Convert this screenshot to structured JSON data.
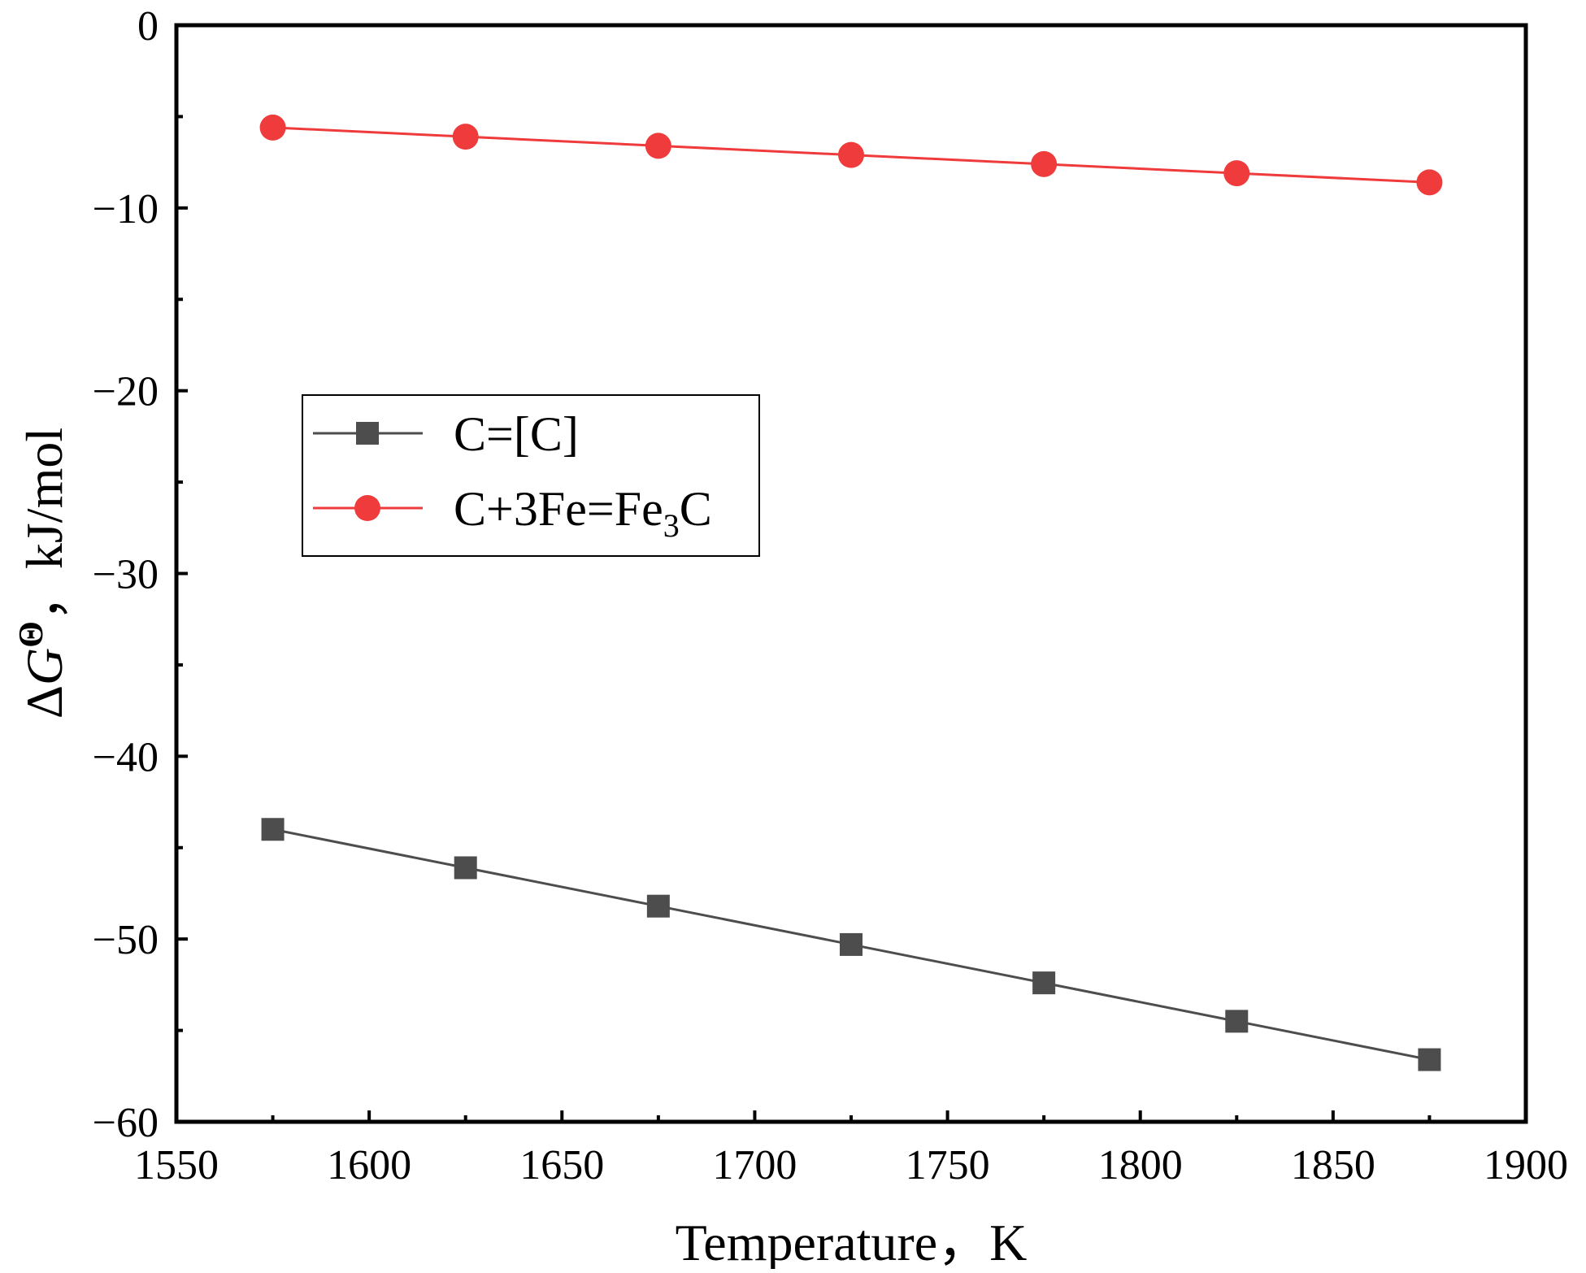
{
  "chart_data": {
    "type": "line",
    "title": "",
    "xlabel": "Temperature，K",
    "ylabel": {
      "delta": "Δ",
      "symbol": "G",
      "superscript": "Θ",
      "rest": "，kJ/mol"
    },
    "xlim": [
      1550,
      1900
    ],
    "ylim": [
      -60,
      0
    ],
    "xticks": [
      1550,
      1600,
      1650,
      1700,
      1750,
      1800,
      1850,
      1900
    ],
    "yticks": [
      0,
      -10,
      -20,
      -30,
      -40,
      -50,
      -60
    ],
    "xtick_labels": [
      "1550",
      "1600",
      "1650",
      "1700",
      "1750",
      "1800",
      "1850",
      "1900"
    ],
    "ytick_labels": [
      "0",
      "−10",
      "−20",
      "−30",
      "−40",
      "−50",
      "−60"
    ],
    "grid": false,
    "legend_position": "center-left",
    "x": [
      1575,
      1625,
      1675,
      1725,
      1775,
      1825,
      1875
    ],
    "series": [
      {
        "name": "C=[C]",
        "legend_parts": [
          {
            "text": "C=[C]",
            "sub": false
          }
        ],
        "marker": "square",
        "color": "#4d4d4d",
        "values": [
          -44.0,
          -46.1,
          -48.2,
          -50.3,
          -52.4,
          -54.5,
          -56.6
        ]
      },
      {
        "name": "C+3Fe=Fe3C",
        "legend_parts": [
          {
            "text": "C+3Fe=Fe",
            "sub": false
          },
          {
            "text": "3",
            "sub": true
          },
          {
            "text": "C",
            "sub": false
          }
        ],
        "marker": "circle",
        "color": "#ef3b3b",
        "values": [
          -5.6,
          -6.1,
          -6.6,
          -7.1,
          -7.6,
          -8.1,
          -8.6
        ]
      }
    ]
  }
}
